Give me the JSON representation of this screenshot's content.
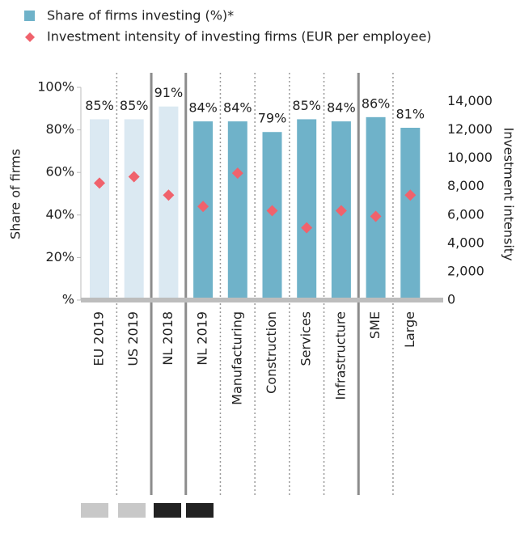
{
  "chart_data": {
    "type": "bar",
    "legend": [
      "Share of firms investing (%)*",
      "Investment intensity of investing firms (EUR per employee)"
    ],
    "y_label": "Share of firms",
    "y2_label": "Investment intensity",
    "categories": [
      "EU 2019",
      "US 2019",
      "NL 2018",
      "NL 2019",
      "Manufacturing",
      "Construction",
      "Services",
      "Infrastructure",
      "SME",
      "Large"
    ],
    "series": [
      {
        "name": "Share of firms investing (%)*",
        "type": "bar",
        "colors": [
          "#dbe9f2",
          "#dbe9f2",
          "#dbe9f2",
          "#6fb2c9",
          "#6fb2c9",
          "#6fb2c9",
          "#6fb2c9",
          "#6fb2c9",
          "#6fb2c9",
          "#6fb2c9"
        ],
        "values": [
          85,
          85,
          91,
          84,
          84,
          79,
          85,
          84,
          86,
          81
        ],
        "value_labels": [
          "85%",
          "85%",
          "91%",
          "84%",
          "84%",
          "79%",
          "85%",
          "84%",
          "86%",
          "81%"
        ]
      },
      {
        "name": "Investment intensity of investing firms (EUR per employee)",
        "type": "scatter",
        "axis": "y2",
        "color": "#f0626c",
        "values": [
          8250,
          8700,
          7400,
          6600,
          8950,
          6300,
          5100,
          6300,
          5900,
          7400
        ]
      }
    ],
    "ylim": [
      0,
      100
    ],
    "yticks": [
      {
        "value": 0,
        "label": "%"
      },
      {
        "value": 20,
        "label": "20%"
      },
      {
        "value": 40,
        "label": "40%"
      },
      {
        "value": 60,
        "label": "60%"
      },
      {
        "value": 80,
        "label": "80%"
      },
      {
        "value": 100,
        "label": "100%"
      }
    ],
    "y2lim": [
      0,
      15000
    ],
    "y2ticks": [
      0,
      {
        "value": 2000,
        "label": "2,000"
      },
      {
        "value": 4000,
        "label": "4,000"
      },
      {
        "value": 6000,
        "label": "6,000"
      },
      {
        "value": 8000,
        "label": "8,000"
      },
      {
        "value": 10000,
        "label": "10,000"
      },
      {
        "value": 12000,
        "label": "12,000"
      },
      {
        "value": 14000,
        "label": "14,000"
      }
    ]
  }
}
